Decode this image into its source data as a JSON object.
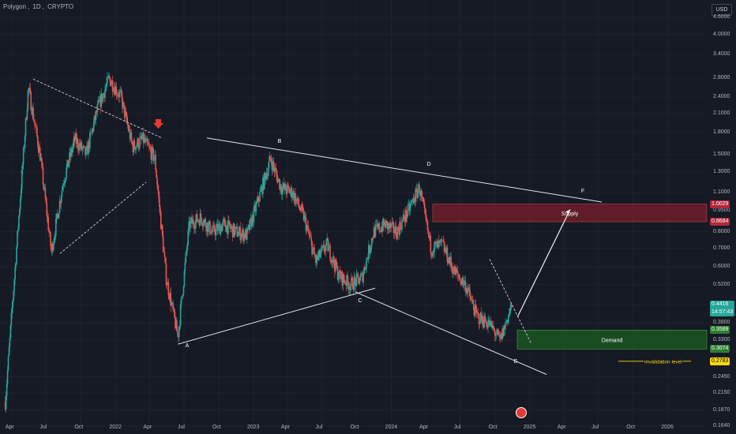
{
  "header": {
    "symbol": "Polygon",
    "timeframe": "1D",
    "exchange": "CRYPTO",
    "currency": "USD"
  },
  "colors": {
    "background": "#161a25",
    "grid": "#1f2330",
    "up": "#26a69a",
    "down": "#ef5350",
    "supply_fill": "#7a1f2b",
    "demand_fill": "#1b5e20",
    "current_price": "#26a69a",
    "invalidation": "#f5d90a",
    "lines": "#e0e3eb"
  },
  "chart_data": {
    "type": "candlestick",
    "title": "Polygon, 1D, CRYPTO",
    "ylabel": "USD",
    "y_scale": "log",
    "ylim": [
      0.164,
      5.3
    ],
    "x_ticks": [
      "Apr",
      "Jul",
      "Oct",
      "2022",
      "Apr",
      "Jul",
      "Oct",
      "2023",
      "Apr",
      "Jul",
      "Oct",
      "2024",
      "Apr",
      "Jul",
      "Oct",
      "2025",
      "Apr",
      "Jul",
      "Oct",
      "2026"
    ],
    "y_ticks": [
      "4.6000",
      "4.0000",
      "3.4000",
      "2.8000",
      "2.4000",
      "2.1000",
      "1.8000",
      "1.5000",
      "1.3000",
      "1.1000",
      "0.9500",
      "0.8000",
      "0.7000",
      "0.6000",
      "0.5200",
      "0.4416",
      "0.3800",
      "0.3300",
      "0.2450",
      "0.2150",
      "0.1870",
      "0.1640"
    ],
    "series": [
      {
        "type": "candlestick",
        "approx_path": [
          {
            "x": "2021-03",
            "y": 0.2
          },
          {
            "x": "2021-05",
            "y": 2.6
          },
          {
            "x": "2021-06",
            "y": 1.5
          },
          {
            "x": "2021-07",
            "y": 0.68
          },
          {
            "x": "2021-08",
            "y": 1.2
          },
          {
            "x": "2021-09",
            "y": 1.7
          },
          {
            "x": "2021-10",
            "y": 1.5
          },
          {
            "x": "2021-11",
            "y": 2.2
          },
          {
            "x": "2021-12",
            "y": 2.8
          },
          {
            "x": "2022-01",
            "y": 2.4
          },
          {
            "x": "2022-02",
            "y": 1.6
          },
          {
            "x": "2022-03",
            "y": 1.7
          },
          {
            "x": "2022-04",
            "y": 1.45
          },
          {
            "x": "2022-05",
            "y": 0.55
          },
          {
            "x": "2022-06",
            "y": 0.34
          },
          {
            "x": "2022-07",
            "y": 0.85
          },
          {
            "x": "2022-08",
            "y": 0.9
          },
          {
            "x": "2022-09",
            "y": 0.8
          },
          {
            "x": "2022-10",
            "y": 0.85
          },
          {
            "x": "2022-11",
            "y": 0.8
          },
          {
            "x": "2022-12",
            "y": 0.78
          },
          {
            "x": "2023-01",
            "y": 1.05
          },
          {
            "x": "2023-02",
            "y": 1.45
          },
          {
            "x": "2023-03",
            "y": 1.15
          },
          {
            "x": "2023-04",
            "y": 1.1
          },
          {
            "x": "2023-05",
            "y": 0.9
          },
          {
            "x": "2023-06",
            "y": 0.63
          },
          {
            "x": "2023-07",
            "y": 0.72
          },
          {
            "x": "2023-08",
            "y": 0.56
          },
          {
            "x": "2023-09",
            "y": 0.52
          },
          {
            "x": "2023-10",
            "y": 0.55
          },
          {
            "x": "2023-11",
            "y": 0.8
          },
          {
            "x": "2023-12",
            "y": 0.85
          },
          {
            "x": "2024-01",
            "y": 0.8
          },
          {
            "x": "2024-02",
            "y": 0.95
          },
          {
            "x": "2024-03",
            "y": 1.15
          },
          {
            "x": "2024-04",
            "y": 0.7
          },
          {
            "x": "2024-05",
            "y": 0.72
          },
          {
            "x": "2024-06",
            "y": 0.58
          },
          {
            "x": "2024-07",
            "y": 0.52
          },
          {
            "x": "2024-08",
            "y": 0.4
          },
          {
            "x": "2024-09",
            "y": 0.38
          },
          {
            "x": "2024-10",
            "y": 0.33
          },
          {
            "x": "2024-11",
            "y": 0.4416
          }
        ]
      }
    ],
    "current_price": "0.4416",
    "countdown": "14:57:43",
    "zones": [
      {
        "label": "Supply",
        "from": 0.8684,
        "to": 1.0029,
        "from_label": "0.8684",
        "to_label": "1.0029"
      },
      {
        "label": "Demand",
        "from": 0.3074,
        "to": 0.3589,
        "from_label": "0.3074",
        "to_label": "0.3589"
      }
    ],
    "invalidation": {
      "label": "invalidation level",
      "price": 0.2783,
      "price_label": "0.2783"
    },
    "wave_points": [
      {
        "label": "A",
        "x": "2022-06",
        "y": 0.32
      },
      {
        "label": "B",
        "x": "2023-02",
        "y": 1.58
      },
      {
        "label": "C",
        "x": "2023-09",
        "y": 0.49
      },
      {
        "label": "D",
        "x": "2024-03",
        "y": 1.35
      },
      {
        "label": "E",
        "x": "2024-10",
        "y": 0.29
      },
      {
        "label": "F",
        "x": "2025-05",
        "y": 1.01
      }
    ]
  }
}
